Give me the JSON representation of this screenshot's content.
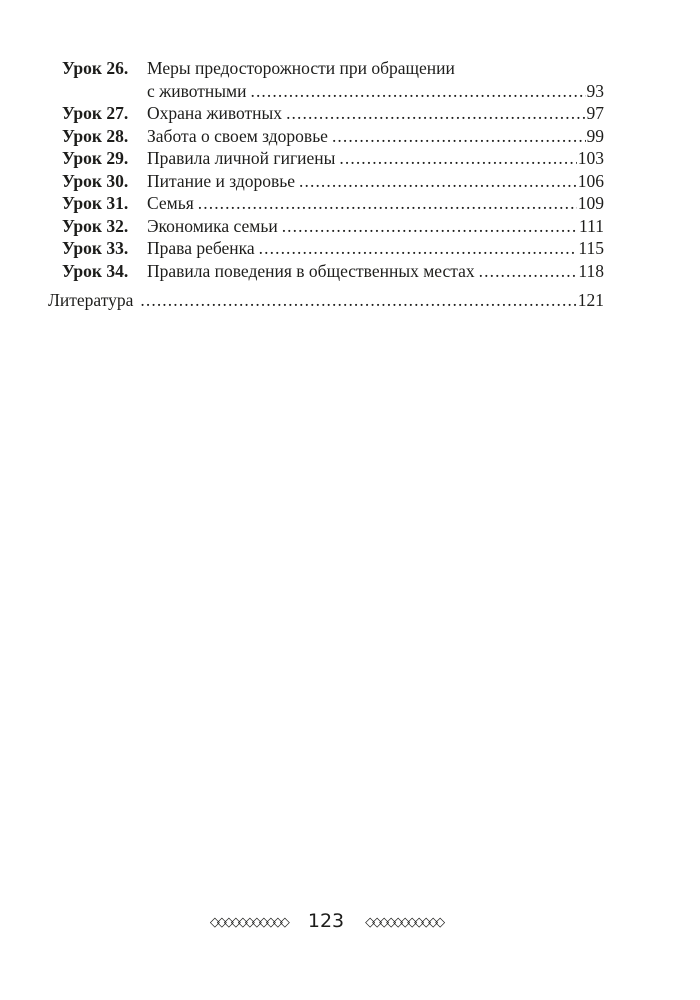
{
  "toc": {
    "entries": [
      {
        "label": "Урок 26.",
        "title": "Меры предосторожности при обращении",
        "title_cont": "с животными",
        "page": "93"
      },
      {
        "label": "Урок 27.",
        "title": "Охрана животных",
        "page": "97"
      },
      {
        "label": "Урок 28.",
        "title": "Забота о своем здоровье",
        "page": "99"
      },
      {
        "label": "Урок 29.",
        "title": "Правила личной гигиены",
        "page": "103"
      },
      {
        "label": "Урок 30.",
        "title": "Питание и здоровье",
        "page": "106"
      },
      {
        "label": "Урок 31.",
        "title": "Семья",
        "page": "109"
      },
      {
        "label": "Урок 32.",
        "title": "Экономика семьи",
        "page": "111"
      },
      {
        "label": "Урок 33.",
        "title": "Права ребенка",
        "page": "115"
      },
      {
        "label": "Урок 34.",
        "title": "Правила поведения в общественных местах",
        "page": "118"
      }
    ],
    "literature": {
      "title": "Литература",
      "page": "121"
    }
  },
  "footer": {
    "ornament_left": "◇◇◇◇◇◇◇◇◇◇◇",
    "page_number": "123",
    "ornament_right": "◇◇◇◇◇◇◇◇◇◇◇"
  },
  "colors": {
    "text": "#1d1d1b",
    "background": "#ffffff"
  }
}
